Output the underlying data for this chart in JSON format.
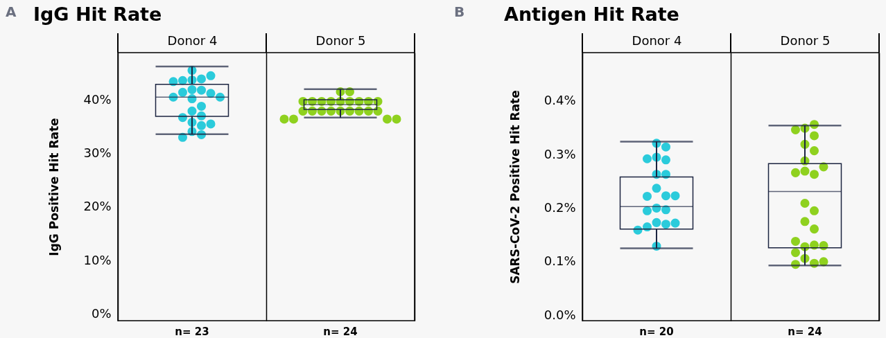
{
  "chart_data": [
    {
      "type": "box",
      "title": "IgG Hit Rate",
      "ylabel": "IgG Positive Hit Rate",
      "categories": [
        "Donor 4",
        "Donor 5"
      ],
      "boxes": [
        {
          "low": 33.6,
          "q1": 36.9,
          "median": 40.5,
          "q3": 42.9,
          "high": 46.2
        },
        {
          "low": 36.7,
          "q1": 38.2,
          "median": 39.1,
          "q3": 40.0,
          "high": 42.0
        }
      ],
      "series": [
        {
          "type": "scatter",
          "color": "#2bcbdb",
          "x": [
            "Donor 4",
            "Donor 4",
            "Donor 4",
            "Donor 4",
            "Donor 4",
            "Donor 4",
            "Donor 4",
            "Donor 4",
            "Donor 4",
            "Donor 4",
            "Donor 4",
            "Donor 4",
            "Donor 4",
            "Donor 4",
            "Donor 4",
            "Donor 4",
            "Donor 4",
            "Donor 4",
            "Donor 4",
            "Donor 4",
            "Donor 4",
            "Donor 4",
            "Donor 4"
          ],
          "values": [
            45.5,
            43.9,
            43.7,
            43.6,
            44.5,
            43.4,
            41.9,
            41.8,
            41.4,
            41.2,
            40.5,
            40.5,
            40.2,
            38.8,
            37.9,
            37.0,
            36.7,
            35.8,
            35.5,
            35.2,
            34.1,
            33.5,
            33.0
          ]
        },
        {
          "type": "scatter",
          "color": "#8fd11f",
          "x": [
            "Donor 5",
            "Donor 5",
            "Donor 5",
            "Donor 5",
            "Donor 5",
            "Donor 5",
            "Donor 5",
            "Donor 5",
            "Donor 5",
            "Donor 5",
            "Donor 5",
            "Donor 5",
            "Donor 5",
            "Donor 5",
            "Donor 5",
            "Donor 5",
            "Donor 5",
            "Donor 5",
            "Donor 5",
            "Donor 5",
            "Donor 5",
            "Donor 5",
            "Donor 5",
            "Donor 5"
          ],
          "values": [
            41.5,
            41.5,
            39.7,
            39.7,
            39.7,
            39.7,
            39.7,
            39.7,
            39.7,
            39.7,
            39.7,
            37.9,
            37.9,
            37.9,
            37.9,
            37.9,
            37.9,
            37.9,
            37.9,
            37.9,
            36.4,
            36.4,
            36.4,
            36.4
          ]
        }
      ],
      "ylim": [
        -1.2,
        48.8
      ],
      "yticks": [
        {
          "value": 0,
          "label": "0%"
        },
        {
          "value": 10,
          "label": "10%"
        },
        {
          "value": 20,
          "label": "20%"
        },
        {
          "value": 30,
          "label": "30%"
        },
        {
          "value": 40,
          "label": "40%"
        }
      ],
      "grid": "x",
      "annotations": [
        "A",
        "n= 23",
        "n= 24"
      ]
    },
    {
      "type": "box",
      "title": "Antigen Hit Rate",
      "ylabel": "SARS-CoV-2 Positive Hit Rate",
      "categories": [
        "Donor 4",
        "Donor 5"
      ],
      "boxes": [
        {
          "low": 0.125,
          "q1": 0.161,
          "median": 0.203,
          "q3": 0.258,
          "high": 0.324
        },
        {
          "low": 0.093,
          "q1": 0.126,
          "median": 0.231,
          "q3": 0.283,
          "high": 0.354
        }
      ],
      "series": [
        {
          "type": "scatter",
          "color": "#2bcbdb",
          "x": [
            "Donor 4",
            "Donor 4",
            "Donor 4",
            "Donor 4",
            "Donor 4",
            "Donor 4",
            "Donor 4",
            "Donor 4",
            "Donor 4",
            "Donor 4",
            "Donor 4",
            "Donor 4",
            "Donor 4",
            "Donor 4",
            "Donor 4",
            "Donor 4",
            "Donor 4",
            "Donor 4",
            "Donor 4",
            "Donor 4"
          ],
          "values": [
            0.321,
            0.314,
            0.295,
            0.29,
            0.292,
            0.263,
            0.263,
            0.237,
            0.223,
            0.222,
            0.223,
            0.2,
            0.197,
            0.195,
            0.173,
            0.17,
            0.165,
            0.172,
            0.159,
            0.129
          ]
        },
        {
          "type": "scatter",
          "color": "#8fd11f",
          "x": [
            "Donor 5",
            "Donor 5",
            "Donor 5",
            "Donor 5",
            "Donor 5",
            "Donor 5",
            "Donor 5",
            "Donor 5",
            "Donor 5",
            "Donor 5",
            "Donor 5",
            "Donor 5",
            "Donor 5",
            "Donor 5",
            "Donor 5",
            "Donor 5",
            "Donor 5",
            "Donor 5",
            "Donor 5",
            "Donor 5",
            "Donor 5",
            "Donor 5",
            "Donor 5",
            "Donor 5"
          ],
          "values": [
            0.349,
            0.356,
            0.346,
            0.335,
            0.319,
            0.307,
            0.288,
            0.269,
            0.263,
            0.266,
            0.277,
            0.209,
            0.195,
            0.175,
            0.161,
            0.128,
            0.131,
            0.138,
            0.117,
            0.106,
            0.097,
            0.095,
            0.1,
            0.13
          ]
        }
      ],
      "ylim": [
        -0.01,
        0.49
      ],
      "yticks": [
        {
          "value": 0,
          "label": "0.0%"
        },
        {
          "value": 0.1,
          "label": "0.1%"
        },
        {
          "value": 0.2,
          "label": "0.2%"
        },
        {
          "value": 0.3,
          "label": "0.3%"
        },
        {
          "value": 0.4,
          "label": "0.4%"
        }
      ],
      "grid": "x",
      "annotations": [
        "B",
        "n= 20",
        "n= 24"
      ]
    }
  ]
}
